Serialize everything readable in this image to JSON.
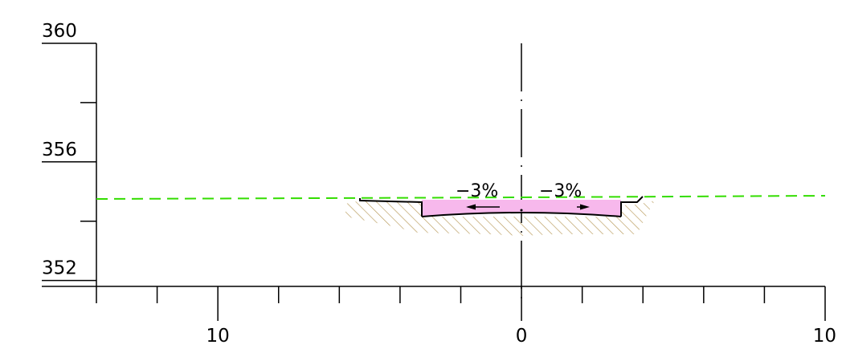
{
  "axes": {
    "y_ticks": [
      {
        "value": 360,
        "label": "360"
      },
      {
        "value": 358,
        "label": ""
      },
      {
        "value": 356,
        "label": "356"
      },
      {
        "value": 354,
        "label": ""
      },
      {
        "value": 352,
        "label": "352"
      }
    ],
    "x_ticks": [
      {
        "value": -14,
        "label": ""
      },
      {
        "value": -12,
        "label": ""
      },
      {
        "value": -10,
        "label": "10"
      },
      {
        "value": -8,
        "label": ""
      },
      {
        "value": -6,
        "label": ""
      },
      {
        "value": -4,
        "label": ""
      },
      {
        "value": -2,
        "label": ""
      },
      {
        "value": 0,
        "label": "0"
      },
      {
        "value": 2,
        "label": ""
      },
      {
        "value": 4,
        "label": ""
      },
      {
        "value": 6,
        "label": ""
      },
      {
        "value": 8,
        "label": ""
      },
      {
        "value": 10,
        "label": "10"
      }
    ],
    "x_range": [
      -14,
      10
    ],
    "y_range": [
      351.8,
      360
    ]
  },
  "section": {
    "left_slope_label": "−3%",
    "right_slope_label": "−3%",
    "ground_line_color": "#33dd00",
    "pavement_fill_color": "#f7b8ec",
    "hatch_color": "#b89a5a"
  }
}
